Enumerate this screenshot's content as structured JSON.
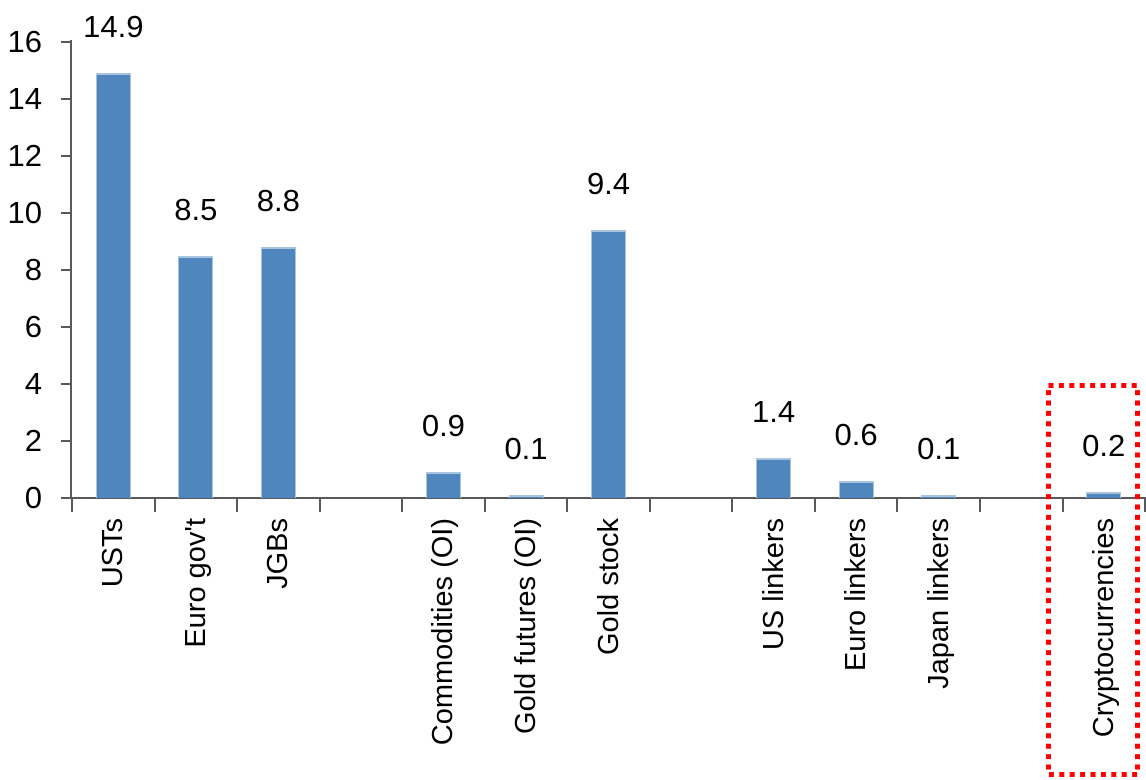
{
  "chart_data": {
    "type": "bar",
    "title": "",
    "xlabel": "",
    "ylabel": "",
    "categories": [
      "USTs",
      "Euro gov't",
      "JGBs",
      "Commodities (OI)",
      "Gold futures (OI)",
      "Gold stock",
      "US linkers",
      "Euro linkers",
      "Japan linkers",
      "Cryptocurrencies"
    ],
    "values": [
      14.9,
      8.5,
      8.8,
      0.9,
      0.1,
      9.4,
      1.4,
      0.6,
      0.1,
      0.2
    ],
    "value_labels": [
      "14.9",
      "8.5",
      "8.8",
      "0.9",
      "0.1",
      "9.4",
      "1.4",
      "0.6",
      "0.1",
      "0.2"
    ],
    "slot_positions": [
      1,
      2,
      3,
      5,
      6,
      7,
      9,
      10,
      11,
      13
    ],
    "total_slots": 13,
    "ylim": [
      0,
      16
    ],
    "yticks": [
      0,
      2,
      4,
      6,
      8,
      10,
      12,
      14,
      16
    ],
    "ytick_labels": [
      "0",
      "2",
      "4",
      "6",
      "8",
      "10",
      "12",
      "14",
      "16"
    ],
    "grid": false,
    "legend": null,
    "annotation": {
      "type": "dotted-box",
      "target": "Cryptocurrencies",
      "color": "#FF0000"
    },
    "colors": {
      "bar": "#4E86BD",
      "bar_edge": "#A9C4DE",
      "axis": "#595959",
      "text": "#000000"
    }
  }
}
